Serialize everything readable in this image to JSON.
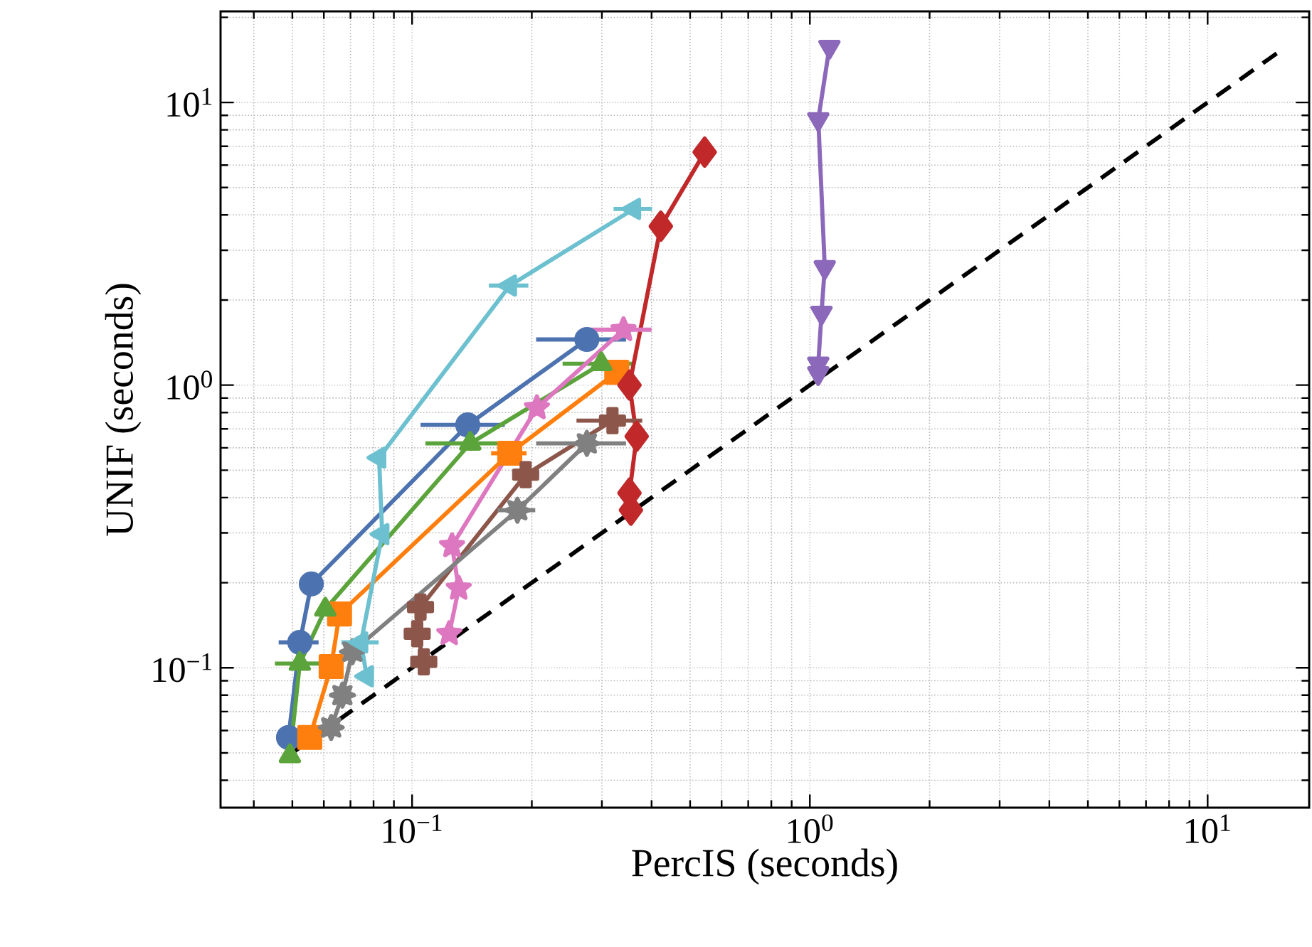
{
  "chart_data": {
    "type": "line",
    "xlabel": "PercIS (seconds)",
    "ylabel": "UNIF (seconds)",
    "log": "xy",
    "grid": true,
    "xlim": [
      0.033,
      18
    ],
    "ylim": [
      0.032,
      21
    ],
    "xticks": [
      {
        "value": 0.1,
        "label": "10$^{−1}$"
      },
      {
        "value": 1,
        "label": "10$^{0}$"
      },
      {
        "value": 10,
        "label": "10$^{1}$"
      }
    ],
    "yticks": [
      {
        "value": 0.1,
        "label": "10$^{−1}$"
      },
      {
        "value": 1,
        "label": "10$^{0}$"
      },
      {
        "value": 10,
        "label": "10$^{1}$"
      }
    ],
    "series": [
      {
        "color": "#4c72b0",
        "marker": "circle",
        "x": [
          0.0489,
          0.0522,
          0.0558,
          0.138,
          0.275
        ],
        "values": [
          0.0567,
          0.123,
          0.198,
          0.723,
          1.45
        ],
        "xerrors": [
          null,
          0.006,
          null,
          0.033,
          0.07
        ]
      },
      {
        "color": "#ff7f0e",
        "marker": "square",
        "x": [
          0.0553,
          0.0626,
          0.0657,
          0.176,
          0.327
        ],
        "values": [
          0.0567,
          0.101,
          0.155,
          0.574,
          1.11
        ],
        "xerrors": [
          null,
          null,
          null,
          0.018,
          null
        ]
      },
      {
        "color": "#5ba33b",
        "marker": "triangle",
        "x": [
          0.0493,
          0.0522,
          0.0605,
          0.14,
          0.299
        ],
        "values": [
          0.0488,
          0.1035,
          0.161,
          0.622,
          1.19
        ],
        "xerrors": [
          null,
          0.007,
          null,
          0.032,
          0.06
        ]
      },
      {
        "color": "#c0282a",
        "marker": "diamond",
        "x": [
          0.355,
          0.352,
          0.367,
          0.352,
          0.422,
          0.544
        ],
        "values": [
          0.361,
          0.415,
          0.659,
          1.0,
          3.65,
          6.67
        ]
      },
      {
        "color": "#8c68bb",
        "marker": "triangle down",
        "x": [
          1.05,
          1.05,
          1.07,
          1.09,
          1.05,
          1.12
        ],
        "values": [
          1.1,
          1.19,
          1.8,
          2.61,
          8.71,
          15.7
        ]
      },
      {
        "color": "#8c564b",
        "marker": "cross",
        "x": [
          0.107,
          0.103,
          0.105,
          0.193,
          0.319
        ],
        "values": [
          0.105,
          0.132,
          0.164,
          0.482,
          0.749
        ],
        "xerrors": [
          null,
          null,
          null,
          null,
          0.06
        ]
      },
      {
        "color": "#dd77c0",
        "marker": "star",
        "x": [
          0.124,
          0.131,
          0.126,
          0.206,
          0.34
        ],
        "values": [
          0.132,
          0.191,
          0.27,
          0.831,
          1.57
        ],
        "xerrors": [
          null,
          null,
          null,
          null,
          0.06
        ]
      },
      {
        "color": "#808080",
        "marker": "star",
        "x": [
          0.0626,
          0.0668,
          0.0708,
          0.184,
          0.275
        ],
        "values": [
          0.0615,
          0.08,
          0.114,
          0.361,
          0.622
        ],
        "xerrors": [
          null,
          null,
          null,
          0.02,
          0.07
        ]
      },
      {
        "color": "#6cc0cf",
        "marker": "triangle left",
        "x": [
          0.0769,
          0.0744,
          0.0841,
          0.0826,
          0.176,
          0.361
        ],
        "values": [
          0.0933,
          0.123,
          0.297,
          0.554,
          2.25,
          4.2
        ],
        "xerrors": [
          null,
          0.008,
          null,
          null,
          0.02,
          0.04
        ]
      },
      {
        "type": "line",
        "color": "#000000",
        "marker": "none",
        "line_style": "dashed",
        "x": [
          0.05,
          15
        ],
        "values": [
          0.05,
          15
        ]
      }
    ]
  }
}
